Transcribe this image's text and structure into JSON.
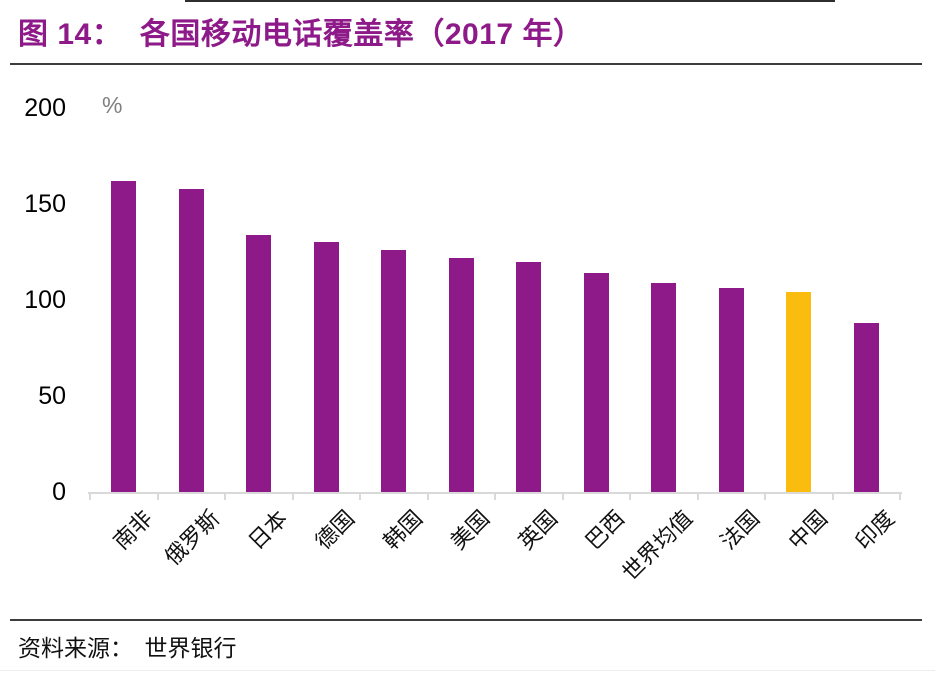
{
  "header": {
    "title": "图 14：  各国移动电话覆盖率（2017 年）"
  },
  "chart": {
    "unit": "%",
    "axis_color": "#D9D9D9",
    "tick_label_color": "#000000",
    "unit_label_color": "#808080",
    "title_color": "#8E1A89"
  },
  "chart_data": {
    "type": "bar",
    "title": "各国移动电话覆盖率（2017 年）",
    "categories": [
      "南非",
      "俄罗斯",
      "日本",
      "德国",
      "韩国",
      "美国",
      "英国",
      "巴西",
      "世界均值",
      "法国",
      "中国",
      "印度"
    ],
    "values": [
      162,
      158,
      134,
      130,
      126,
      122,
      120,
      114,
      109,
      106,
      104,
      88
    ],
    "bar_color": "#8E1A89",
    "highlight_color": "#FBBC10",
    "highlight_index": 10,
    "highlight_category": "中国",
    "ylabel": "%",
    "ylim": [
      0,
      200
    ],
    "yticks": [
      0,
      50,
      100,
      150,
      200
    ],
    "grid": false,
    "legend": false
  },
  "footer": {
    "source": "资料来源：  世界银行"
  }
}
